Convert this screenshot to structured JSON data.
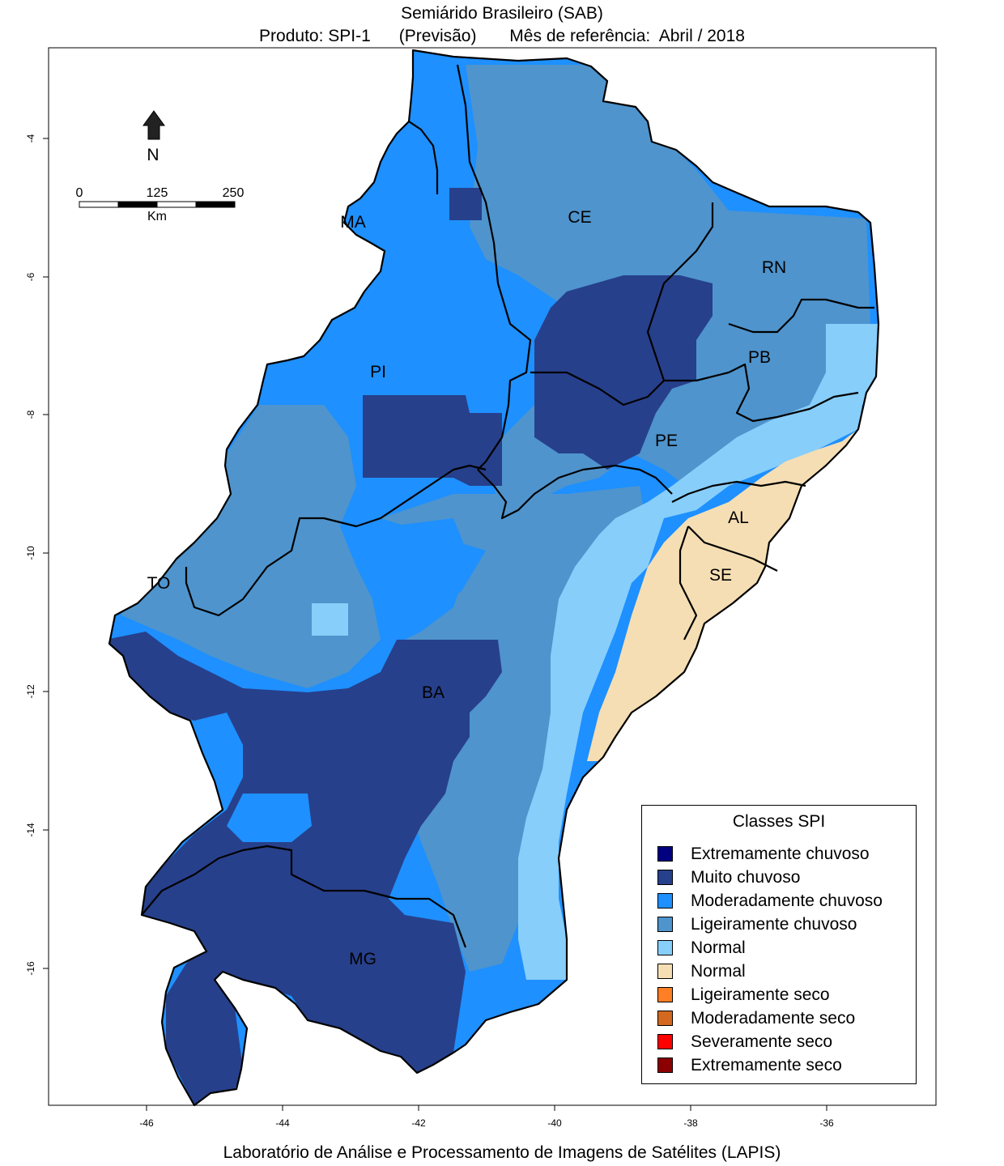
{
  "title": {
    "line1": "Semiárido Brasileiro (SAB)",
    "line2": "Produto: SPI-1      (Previsão)       Mês de referência:  Abril / 2018"
  },
  "footer": "Laboratório de Análise e Processamento de Imagens de Satélites (LAPIS)",
  "axes": {
    "x_ticks": [
      "-46",
      "-44",
      "-42",
      "-40",
      "-38",
      "-36"
    ],
    "y_ticks": [
      "-4",
      "-6",
      "-8",
      "-10",
      "-12",
      "-14",
      "-16"
    ]
  },
  "north_arrow": {
    "label": "N",
    "icon": "north-arrow-icon"
  },
  "scale_bar": {
    "labels": [
      "0",
      "125",
      "250"
    ],
    "unit": "Km"
  },
  "states": [
    {
      "id": "ma",
      "label": "MA"
    },
    {
      "id": "ce",
      "label": "CE"
    },
    {
      "id": "rn",
      "label": "RN"
    },
    {
      "id": "pb",
      "label": "PB"
    },
    {
      "id": "pi",
      "label": "PI"
    },
    {
      "id": "pe",
      "label": "PE"
    },
    {
      "id": "al",
      "label": "AL"
    },
    {
      "id": "se",
      "label": "SE"
    },
    {
      "id": "to",
      "label": "TO"
    },
    {
      "id": "ba",
      "label": "BA"
    },
    {
      "id": "mg",
      "label": "MG"
    }
  ],
  "legend": {
    "title": "Classes SPI",
    "items": [
      {
        "label": "Extremamente chuvoso",
        "color": "#000080"
      },
      {
        "label": "Muito chuvoso",
        "color": "#27408B"
      },
      {
        "label": "Moderadamente chuvoso",
        "color": "#1E90FF"
      },
      {
        "label": "Ligeiramente chuvoso",
        "color": "#4F94CD"
      },
      {
        "label": "Normal",
        "color": "#87CEFA"
      },
      {
        "label": "Normal",
        "color": "#F5DEB3"
      },
      {
        "label": "Ligeiramente seco",
        "color": "#FF7F24"
      },
      {
        "label": "Moderadamente seco",
        "color": "#D2691E"
      },
      {
        "label": "Severamente seco",
        "color": "#FF0000"
      },
      {
        "label": "Extremamente seco",
        "color": "#8B0000"
      }
    ]
  }
}
